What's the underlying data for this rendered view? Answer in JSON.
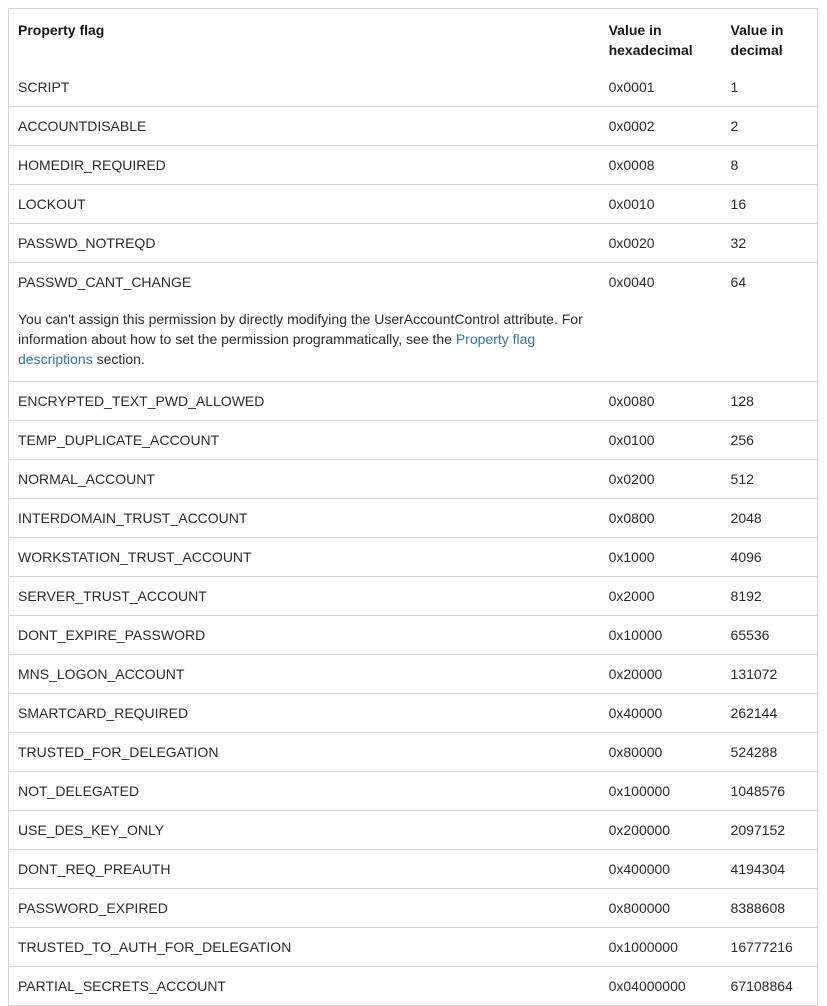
{
  "colors": {
    "background": "#ffffff",
    "border": "#d6d6d6",
    "text": "#2b2b2b",
    "header_text": "#171717",
    "link": "#32789c"
  },
  "table": {
    "headers": [
      "Property flag",
      "Value in hexadecimal",
      "Value in decimal"
    ],
    "rows": [
      {
        "flag": "SCRIPT",
        "hex": "0x0001",
        "dec": "1"
      },
      {
        "flag": "ACCOUNTDISABLE",
        "hex": "0x0002",
        "dec": "2"
      },
      {
        "flag": "HOMEDIR_REQUIRED",
        "hex": "0x0008",
        "dec": "8"
      },
      {
        "flag": "LOCKOUT",
        "hex": "0x0010",
        "dec": "16"
      },
      {
        "flag": "PASSWD_NOTREQD",
        "hex": "0x0020",
        "dec": "32"
      },
      {
        "flag": "PASSWD_CANT_CHANGE",
        "hex": "0x0040",
        "dec": "64"
      },
      {
        "flag": "ENCRYPTED_TEXT_PWD_ALLOWED",
        "hex": "0x0080",
        "dec": "128"
      },
      {
        "flag": "TEMP_DUPLICATE_ACCOUNT",
        "hex": "0x0100",
        "dec": "256"
      },
      {
        "flag": "NORMAL_ACCOUNT",
        "hex": "0x0200",
        "dec": "512"
      },
      {
        "flag": "INTERDOMAIN_TRUST_ACCOUNT",
        "hex": "0x0800",
        "dec": "2048"
      },
      {
        "flag": "WORKSTATION_TRUST_ACCOUNT",
        "hex": "0x1000",
        "dec": "4096"
      },
      {
        "flag": "SERVER_TRUST_ACCOUNT",
        "hex": "0x2000",
        "dec": "8192"
      },
      {
        "flag": "DONT_EXPIRE_PASSWORD",
        "hex": "0x10000",
        "dec": "65536"
      },
      {
        "flag": "MNS_LOGON_ACCOUNT",
        "hex": "0x20000",
        "dec": "131072"
      },
      {
        "flag": "SMARTCARD_REQUIRED",
        "hex": "0x40000",
        "dec": "262144"
      },
      {
        "flag": "TRUSTED_FOR_DELEGATION",
        "hex": "0x80000",
        "dec": "524288"
      },
      {
        "flag": "NOT_DELEGATED",
        "hex": "0x100000",
        "dec": "1048576"
      },
      {
        "flag": "USE_DES_KEY_ONLY",
        "hex": "0x200000",
        "dec": "2097152"
      },
      {
        "flag": "DONT_REQ_PREAUTH",
        "hex": "0x400000",
        "dec": "4194304"
      },
      {
        "flag": "PASSWORD_EXPIRED",
        "hex": "0x800000",
        "dec": "8388608"
      },
      {
        "flag": "TRUSTED_TO_AUTH_FOR_DELEGATION",
        "hex": "0x1000000",
        "dec": "16777216"
      },
      {
        "flag": "PARTIAL_SECRETS_ACCOUNT",
        "hex": "0x04000000",
        "dec": "67108864"
      }
    ],
    "note": {
      "text_before_link": "You can't assign this permission by directly modifying the UserAccountControl attribute. For information about how to set the permission programmatically, see the ",
      "link_text": "Property flag descriptions",
      "text_after_link": " section."
    }
  }
}
